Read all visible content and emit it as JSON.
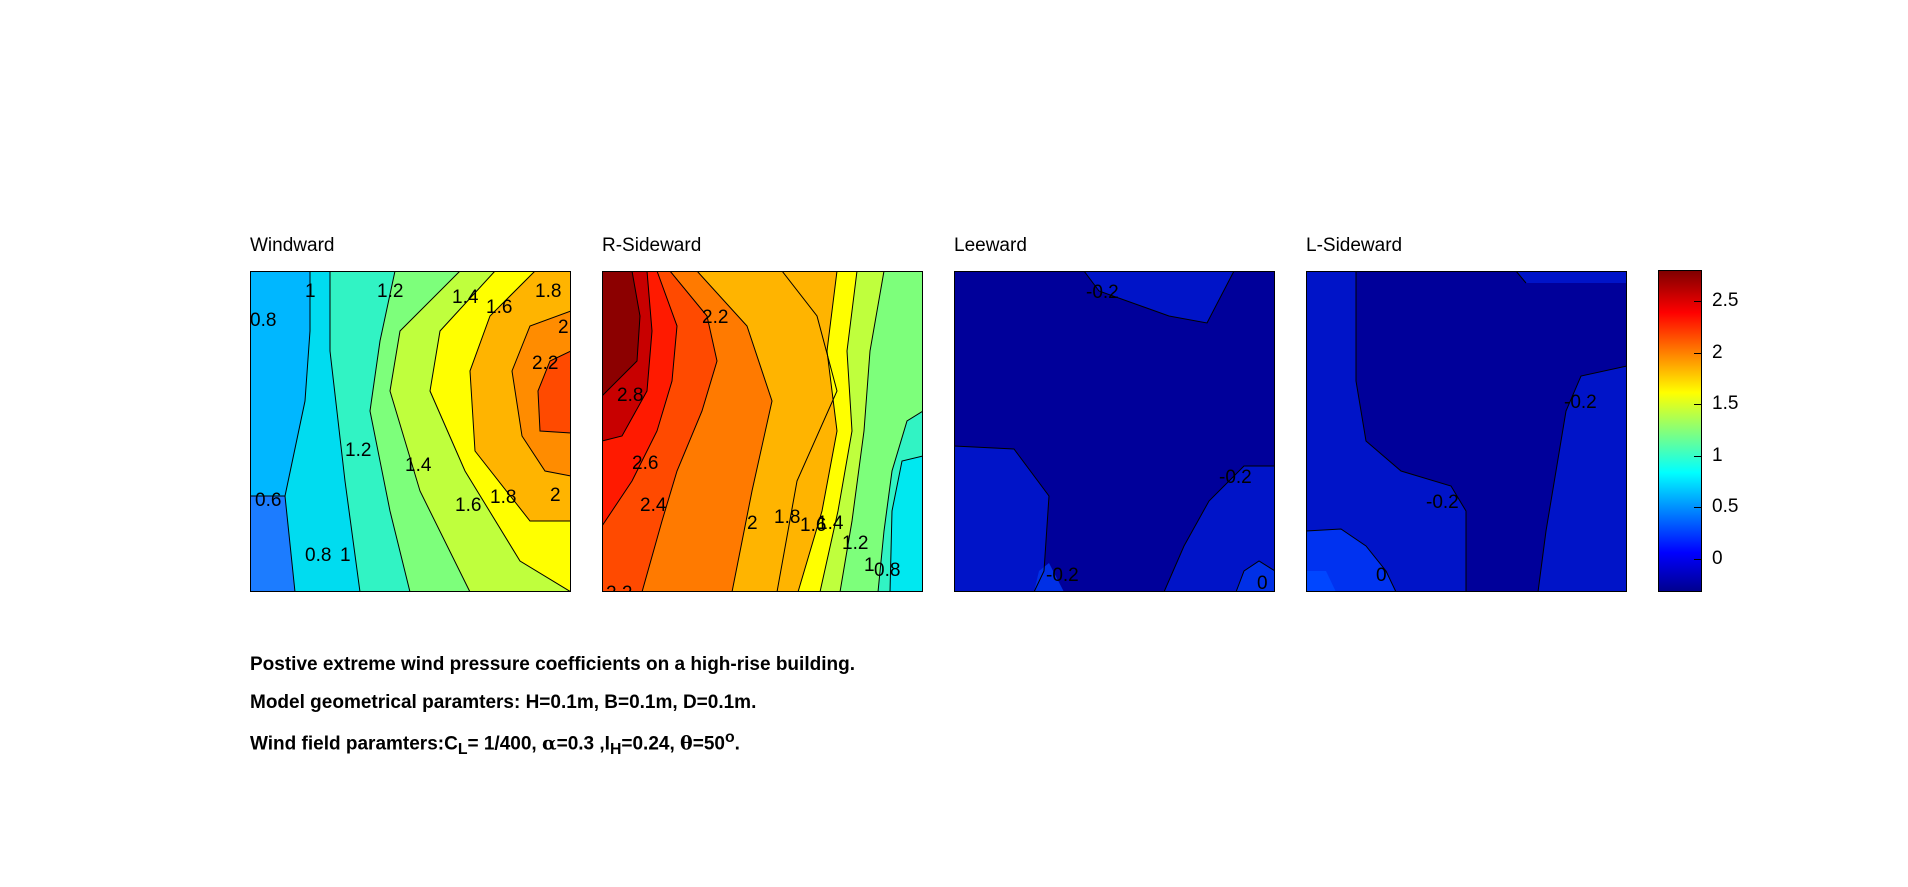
{
  "chart_data": [
    {
      "type": "heatmap",
      "subtype": "filled-contour",
      "title": "Windward",
      "contour_labels": [
        "0.8",
        "1",
        "1.2",
        "1.4",
        "1.6",
        "1.8",
        "2",
        "2.2",
        "1.2",
        "1.4",
        "0.6",
        "0.8",
        "1",
        "1.6",
        "1.8",
        "2"
      ],
      "value_range": [
        0.4,
        2.35
      ],
      "description": "Values increase from ~0.5 on the left edge to a maximum ~2.3 near the right edge middle"
    },
    {
      "type": "heatmap",
      "subtype": "filled-contour",
      "title": "R-Sideward",
      "contour_labels": [
        "2.2",
        "2.8",
        "2.6",
        "2.4",
        "2",
        "1.8",
        "1.6",
        "1.4",
        "1.2",
        "1",
        "0.8",
        "2.2"
      ],
      "value_range": [
        0.7,
        2.85
      ],
      "description": "Maximum ~2.8 at the upper-left, decreasing towards ~0.8 at the lower-right"
    },
    {
      "type": "heatmap",
      "subtype": "filled-contour",
      "title": "Leeward",
      "contour_labels": [
        "-0.2",
        "-0.2",
        "-0.2",
        "0"
      ],
      "value_range": [
        -0.3,
        0.0
      ],
      "description": "Mostly uniform around -0.2 to -0.3"
    },
    {
      "type": "heatmap",
      "subtype": "filled-contour",
      "title": "L-Sideward",
      "contour_labels": [
        "-0.2",
        "-0.2",
        "0"
      ],
      "value_range": [
        -0.3,
        0.05
      ],
      "description": "Mostly around -0.25, slightly higher near the lower-left corner"
    }
  ],
  "colorbar": {
    "colormap": "jet",
    "range": [
      -0.3,
      2.8
    ],
    "tick_labels": [
      "0",
      "0.5",
      "1",
      "1.5",
      "2",
      "2.5"
    ],
    "tick_values": [
      0,
      0.5,
      1,
      1.5,
      2,
      2.5
    ]
  },
  "caption": {
    "line1": "Postive extreme  wind pressure coefficients on a high-rise building.",
    "line2": "Model geometrical paramters: H=0.1m, B=0.1m, D=0.1m.",
    "line3_prefix": "Wind field paramters:C",
    "line3_cl_sub": "L",
    "line3_cl_val": "= 1/400, ",
    "line3_alpha_sym": "α",
    "line3_alpha_val": "=0.3 ,I",
    "line3_ih_sub": "H",
    "line3_ih_val": "=0.24, ",
    "line3_theta_sym": "θ",
    "line3_theta_val": "=50",
    "line3_deg_sup": "o",
    "line3_end": "."
  },
  "colors": {
    "contour_line": "#000000",
    "background": "#ffffff"
  }
}
